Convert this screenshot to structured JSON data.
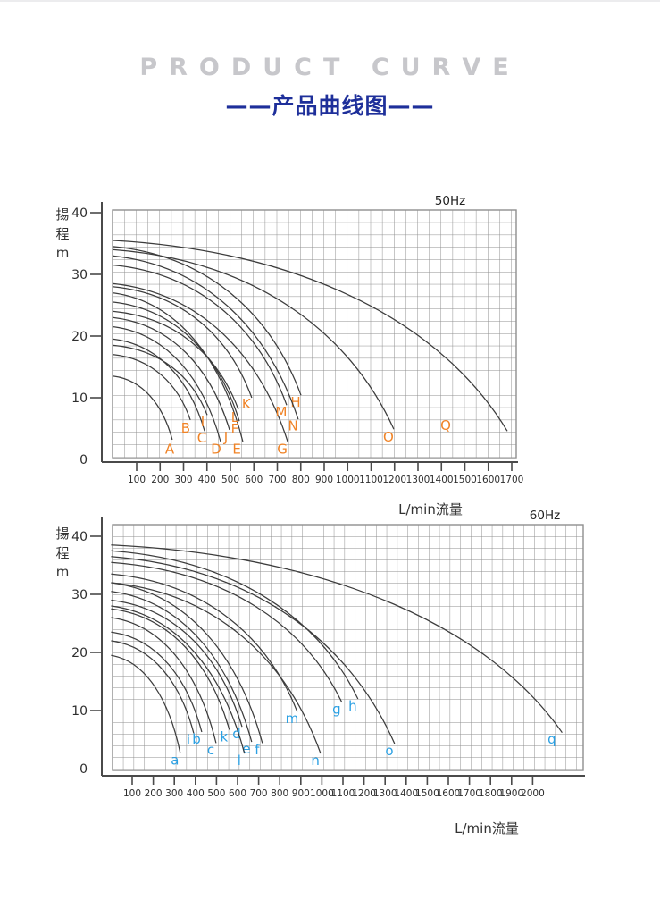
{
  "header": {
    "title_en": "PRODUCT CURVE",
    "title_zh": "——产品曲线图——"
  },
  "colors": {
    "grid": "#8f8f8f",
    "axis": "#4a4a4a",
    "curve": "#3c3c3c",
    "label_50hz": "#F08326",
    "label_60hz": "#2BA0E3",
    "title_navy": "#1e2f9a",
    "title_gray": "#c7c7cb"
  },
  "chart_data": [
    {
      "type": "line",
      "freq_label": "50Hz",
      "ylabel_chars": [
        "揚",
        "程",
        "m"
      ],
      "xlabel": "L/min流量",
      "x_ticks": [
        100,
        200,
        300,
        400,
        500,
        600,
        700,
        800,
        900,
        1000,
        1100,
        1200,
        1300,
        1400,
        1500,
        1600,
        1700
      ],
      "y_ticks": [
        40,
        30,
        20,
        10,
        0
      ],
      "xlim": [
        0,
        1720
      ],
      "ylim": [
        0,
        40.5
      ],
      "grid": true,
      "label_color": "#F08326",
      "series": [
        {
          "name": "A",
          "shutoff_head_m": 13.5,
          "end": [
            252,
            3.2
          ],
          "label_at": [
            241,
            1.7
          ]
        },
        {
          "name": "B",
          "shutoff_head_m": 17.0,
          "end": [
            329,
            6.4
          ],
          "label_at": [
            309,
            5.1
          ]
        },
        {
          "name": "C",
          "shutoff_head_m": 19.5,
          "end": [
            390,
            4.6
          ],
          "label_at": [
            378,
            3.5
          ]
        },
        {
          "name": "D",
          "shutoff_head_m": 21.5,
          "end": [
            458,
            2.9
          ],
          "label_at": [
            439,
            1.7
          ]
        },
        {
          "name": "E",
          "shutoff_head_m": 27.0,
          "end": [
            553,
            2.9
          ],
          "label_at": [
            527,
            1.7
          ]
        },
        {
          "name": "F",
          "shutoff_head_m": 25.5,
          "end": [
            538,
            6.2
          ],
          "label_at": [
            519,
            4.9
          ]
        },
        {
          "name": "G",
          "shutoff_head_m": 28.5,
          "end": [
            744,
            2.9
          ],
          "label_at": [
            721,
            1.7
          ]
        },
        {
          "name": "H",
          "shutoff_head_m": 34.5,
          "end": [
            801,
            10.4
          ],
          "label_at": [
            778,
            9.3
          ]
        },
        {
          "name": "I",
          "shutoff_head_m": 18.5,
          "end": [
            401,
            7.2
          ],
          "label_at": [
            382,
            6.1
          ]
        },
        {
          "name": "J",
          "shutoff_head_m": 23.0,
          "end": [
            496,
            4.8
          ],
          "label_at": [
            481,
            3.6
          ]
        },
        {
          "name": "K",
          "shutoff_head_m": 28.0,
          "end": [
            591,
            10.0
          ],
          "label_at": [
            568,
            9.0
          ]
        },
        {
          "name": "L",
          "shutoff_head_m": 24.0,
          "end": [
            534,
            8.1
          ],
          "label_at": [
            519,
            6.8
          ]
        },
        {
          "name": "M",
          "shutoff_head_m": 31.5,
          "end": [
            740,
            8.8
          ],
          "label_at": [
            717,
            7.7
          ]
        },
        {
          "name": "N",
          "shutoff_head_m": 33.0,
          "end": [
            789,
            6.5
          ],
          "label_at": [
            767,
            5.4
          ]
        },
        {
          "name": "O",
          "shutoff_head_m": 34.0,
          "end": [
            1197,
            4.9
          ],
          "label_at": [
            1174,
            3.6
          ]
        },
        {
          "name": "Q",
          "shutoff_head_m": 35.5,
          "end": [
            1681,
            4.6
          ],
          "label_at": [
            1418,
            5.5
          ]
        }
      ]
    },
    {
      "type": "line",
      "freq_label": "60Hz",
      "ylabel_chars": [
        "揚",
        "程",
        "m"
      ],
      "xlabel": "L/min流量",
      "x_ticks": [
        100,
        200,
        300,
        400,
        500,
        600,
        700,
        800,
        900,
        1000,
        1100,
        1200,
        1300,
        1400,
        1500,
        1600,
        1700,
        1800,
        1900,
        2000
      ],
      "y_ticks": [
        40,
        30,
        20,
        10,
        0
      ],
      "xlim": [
        0,
        2240
      ],
      "ylim": [
        0,
        42
      ],
      "grid": true,
      "label_color": "#2BA0E3",
      "series": [
        {
          "name": "a",
          "shutoff_head_m": 19.5,
          "end": [
            328,
            2.7
          ],
          "label_at": [
            303,
            1.5
          ]
        },
        {
          "name": "b",
          "shutoff_head_m": 23.5,
          "end": [
            430,
            6.3
          ],
          "label_at": [
            405,
            5.1
          ]
        },
        {
          "name": "c",
          "shutoff_head_m": 26.0,
          "end": [
            498,
            4.4
          ],
          "label_at": [
            473,
            3.2
          ]
        },
        {
          "name": "d",
          "shutoff_head_m": 29.0,
          "end": [
            621,
            7.2
          ],
          "label_at": [
            596,
            6.0
          ]
        },
        {
          "name": "e",
          "shutoff_head_m": 30.5,
          "end": [
            667,
            4.6
          ],
          "label_at": [
            642,
            3.4
          ]
        },
        {
          "name": "f",
          "shutoff_head_m": 32.0,
          "end": [
            718,
            4.4
          ],
          "label_at": [
            693,
            3.2
          ]
        },
        {
          "name": "g",
          "shutoff_head_m": 35.5,
          "end": [
            1095,
            11.4
          ],
          "label_at": [
            1070,
            10.2
          ]
        },
        {
          "name": "h",
          "shutoff_head_m": 37.5,
          "end": [
            1171,
            12.0
          ],
          "label_at": [
            1146,
            10.8
          ]
        },
        {
          "name": "i",
          "shutoff_head_m": 22.0,
          "end": [
            392,
            6.1
          ],
          "label_at": [
            367,
            4.9
          ]
        },
        {
          "name": "k",
          "shutoff_head_m": 27.5,
          "end": [
            561,
            6.7
          ],
          "label_at": [
            536,
            5.5
          ]
        },
        {
          "name": "l",
          "shutoff_head_m": 28.0,
          "end": [
            633,
            2.6
          ],
          "label_at": [
            608,
            1.4
          ]
        },
        {
          "name": "m",
          "shutoff_head_m": 33.5,
          "end": [
            883,
            9.8
          ],
          "label_at": [
            858,
            8.6
          ]
        },
        {
          "name": "n",
          "shutoff_head_m": 32.0,
          "end": [
            994,
            2.6
          ],
          "label_at": [
            969,
            1.4
          ]
        },
        {
          "name": "o",
          "shutoff_head_m": 36.5,
          "end": [
            1345,
            4.3
          ],
          "label_at": [
            1320,
            3.1
          ]
        },
        {
          "name": "q",
          "shutoff_head_m": 38.5,
          "end": [
            2140,
            6.2
          ],
          "label_at": [
            2091,
            5.1
          ]
        }
      ]
    }
  ]
}
